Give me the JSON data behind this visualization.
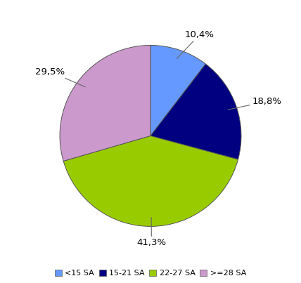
{
  "labels": [
    "<15 SA",
    "15-21 SA",
    "22-27 SA",
    ">=28 SA"
  ],
  "values": [
    10.4,
    18.8,
    41.3,
    29.5
  ],
  "colors": [
    "#6699FF",
    "#000080",
    "#99CC00",
    "#CC99CC"
  ],
  "label_texts": [
    "10,4%",
    "18,8%",
    "41,3%",
    "29,5%"
  ],
  "legend_colors": [
    "#6699FF",
    "#000080",
    "#99CC00",
    "#CC99CC"
  ],
  "background_color": "#FFFFFF",
  "startangle": 90,
  "font_size": 9.5
}
